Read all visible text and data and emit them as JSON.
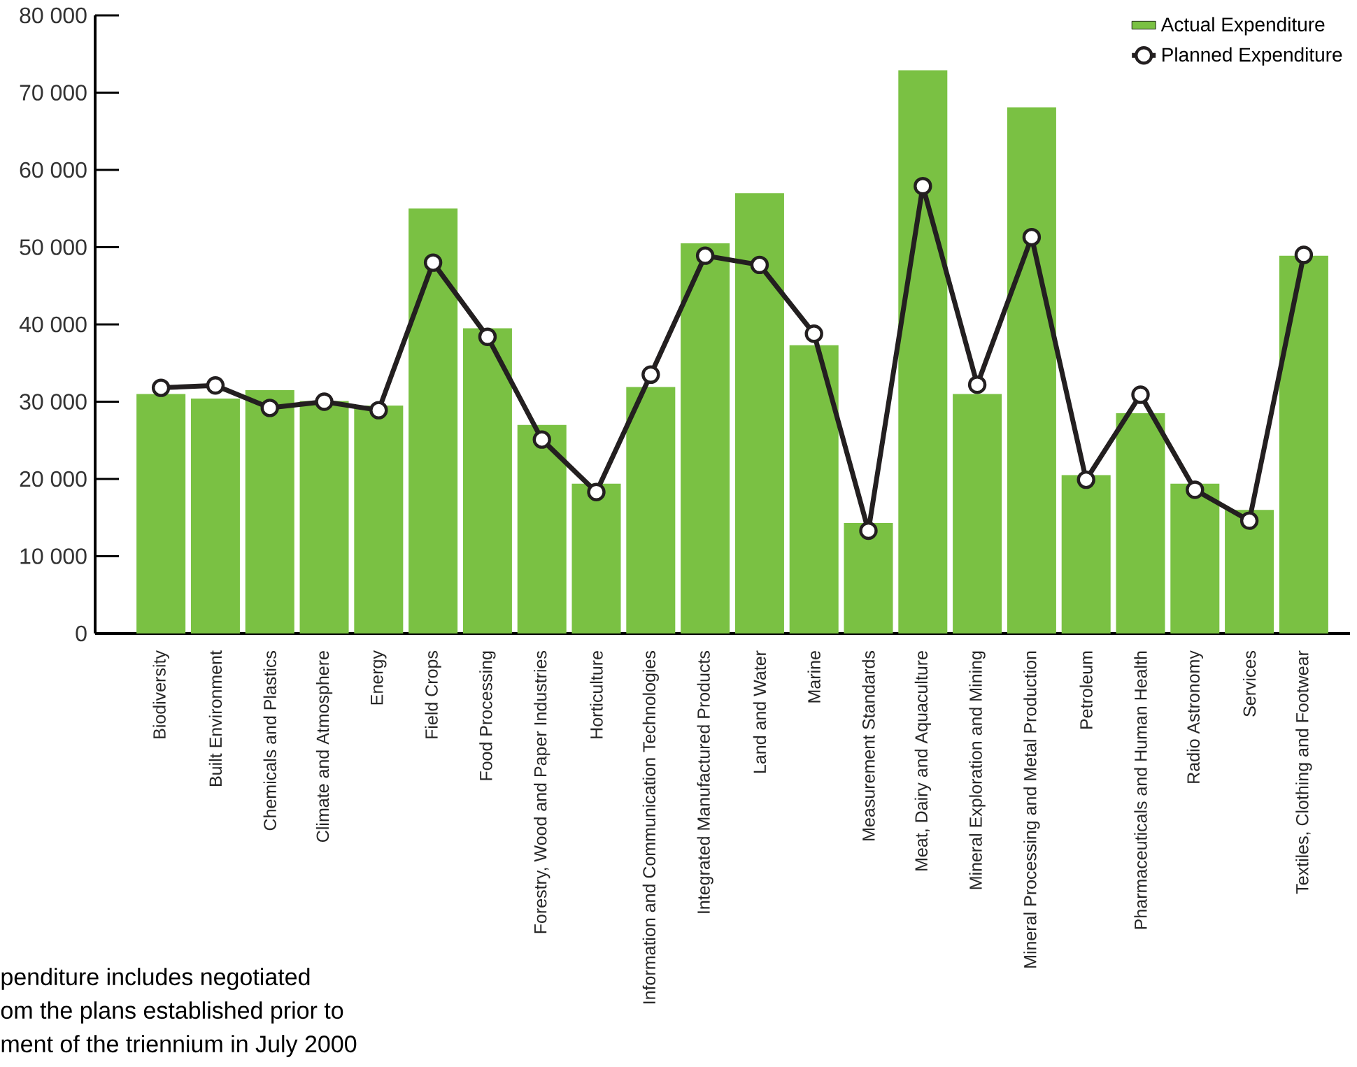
{
  "chart_data": {
    "type": "bar",
    "categories": [
      "Biodiversity",
      "Built Environment",
      "Chemicals and Plastics",
      "Climate and Atmosphere",
      "Energy",
      "Field Crops",
      "Food Processing",
      "Forestry, Wood and Paper Industries",
      "Horticulture",
      "Information and Communication Technologies",
      "Integrated Manufactured Products",
      "Land and Water",
      "Marine",
      "Measurement Standards",
      "Meat, Dairy and Aquaculture",
      "Mineral Exploration and Mining",
      "Mineral Processing and Metal Production",
      "Petroleum",
      "Pharmaceuticals and Human Health",
      "Radio Astronomy",
      "Services",
      "Textiles, Clothing and Footwear"
    ],
    "series": [
      {
        "name": "Actual Expenditure",
        "color": "#7ac143",
        "values": [
          31000,
          30400,
          31500,
          30100,
          29500,
          55000,
          39500,
          27000,
          19400,
          31900,
          50500,
          57000,
          37300,
          14300,
          72900,
          31000,
          68100,
          20500,
          28500,
          19400,
          16000,
          48900
        ]
      },
      {
        "name": "Planned Expenditure",
        "type": "line",
        "color": "#231f20",
        "marker": "circle",
        "values": [
          31800,
          32100,
          29200,
          30000,
          28900,
          48000,
          38400,
          25100,
          18300,
          33500,
          48900,
          47700,
          38800,
          13300,
          57900,
          32200,
          51300,
          19900,
          30900,
          18600,
          14600,
          49000
        ]
      }
    ],
    "ylim": [
      0,
      80000
    ],
    "yticks": [
      0,
      {
        "value": 10000,
        "label": "10 000"
      },
      {
        "value": 20000,
        "label": "20 000"
      },
      {
        "value": 30000,
        "label": "30 000"
      },
      {
        "value": 40000,
        "label": "40 000"
      },
      {
        "value": 50000,
        "label": "50 000"
      },
      {
        "value": 60000,
        "label": "60 000"
      },
      {
        "value": 70000,
        "label": "70 000"
      },
      {
        "value": 80000,
        "label": "80 000"
      }
    ],
    "legend": "top right",
    "annotations": [
      "penditure includes negotiated",
      "om the plans established prior to",
      "ment of the triennium in July 2000"
    ]
  }
}
